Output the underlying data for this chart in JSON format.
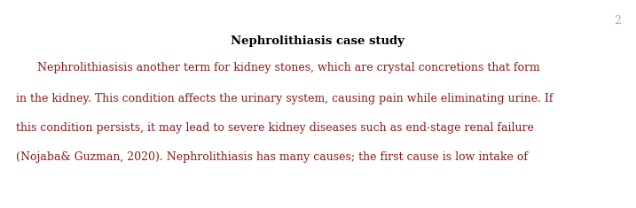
{
  "page_number": "2",
  "page_number_color": "#c8a882",
  "title": "Nephrolithiasis case study",
  "title_color": "#000000",
  "title_fontsize": 9.5,
  "body_fontsize": 9.0,
  "body_color": "#8B1A1A",
  "background_color": "#ffffff",
  "line1": "      Nephrolithiasisis another term for kidney stones, which are crystal concretions that form",
  "line2": "in the kidney. This condition affects the urinary system, causing pain while eliminating urine. If",
  "line3": "this condition persists, it may lead to severe kidney diseases such as end-stage renal failure",
  "line4": "(Nojaba& Guzman, 2020). Nephrolithiasis has many causes; the first cause is low intake of"
}
